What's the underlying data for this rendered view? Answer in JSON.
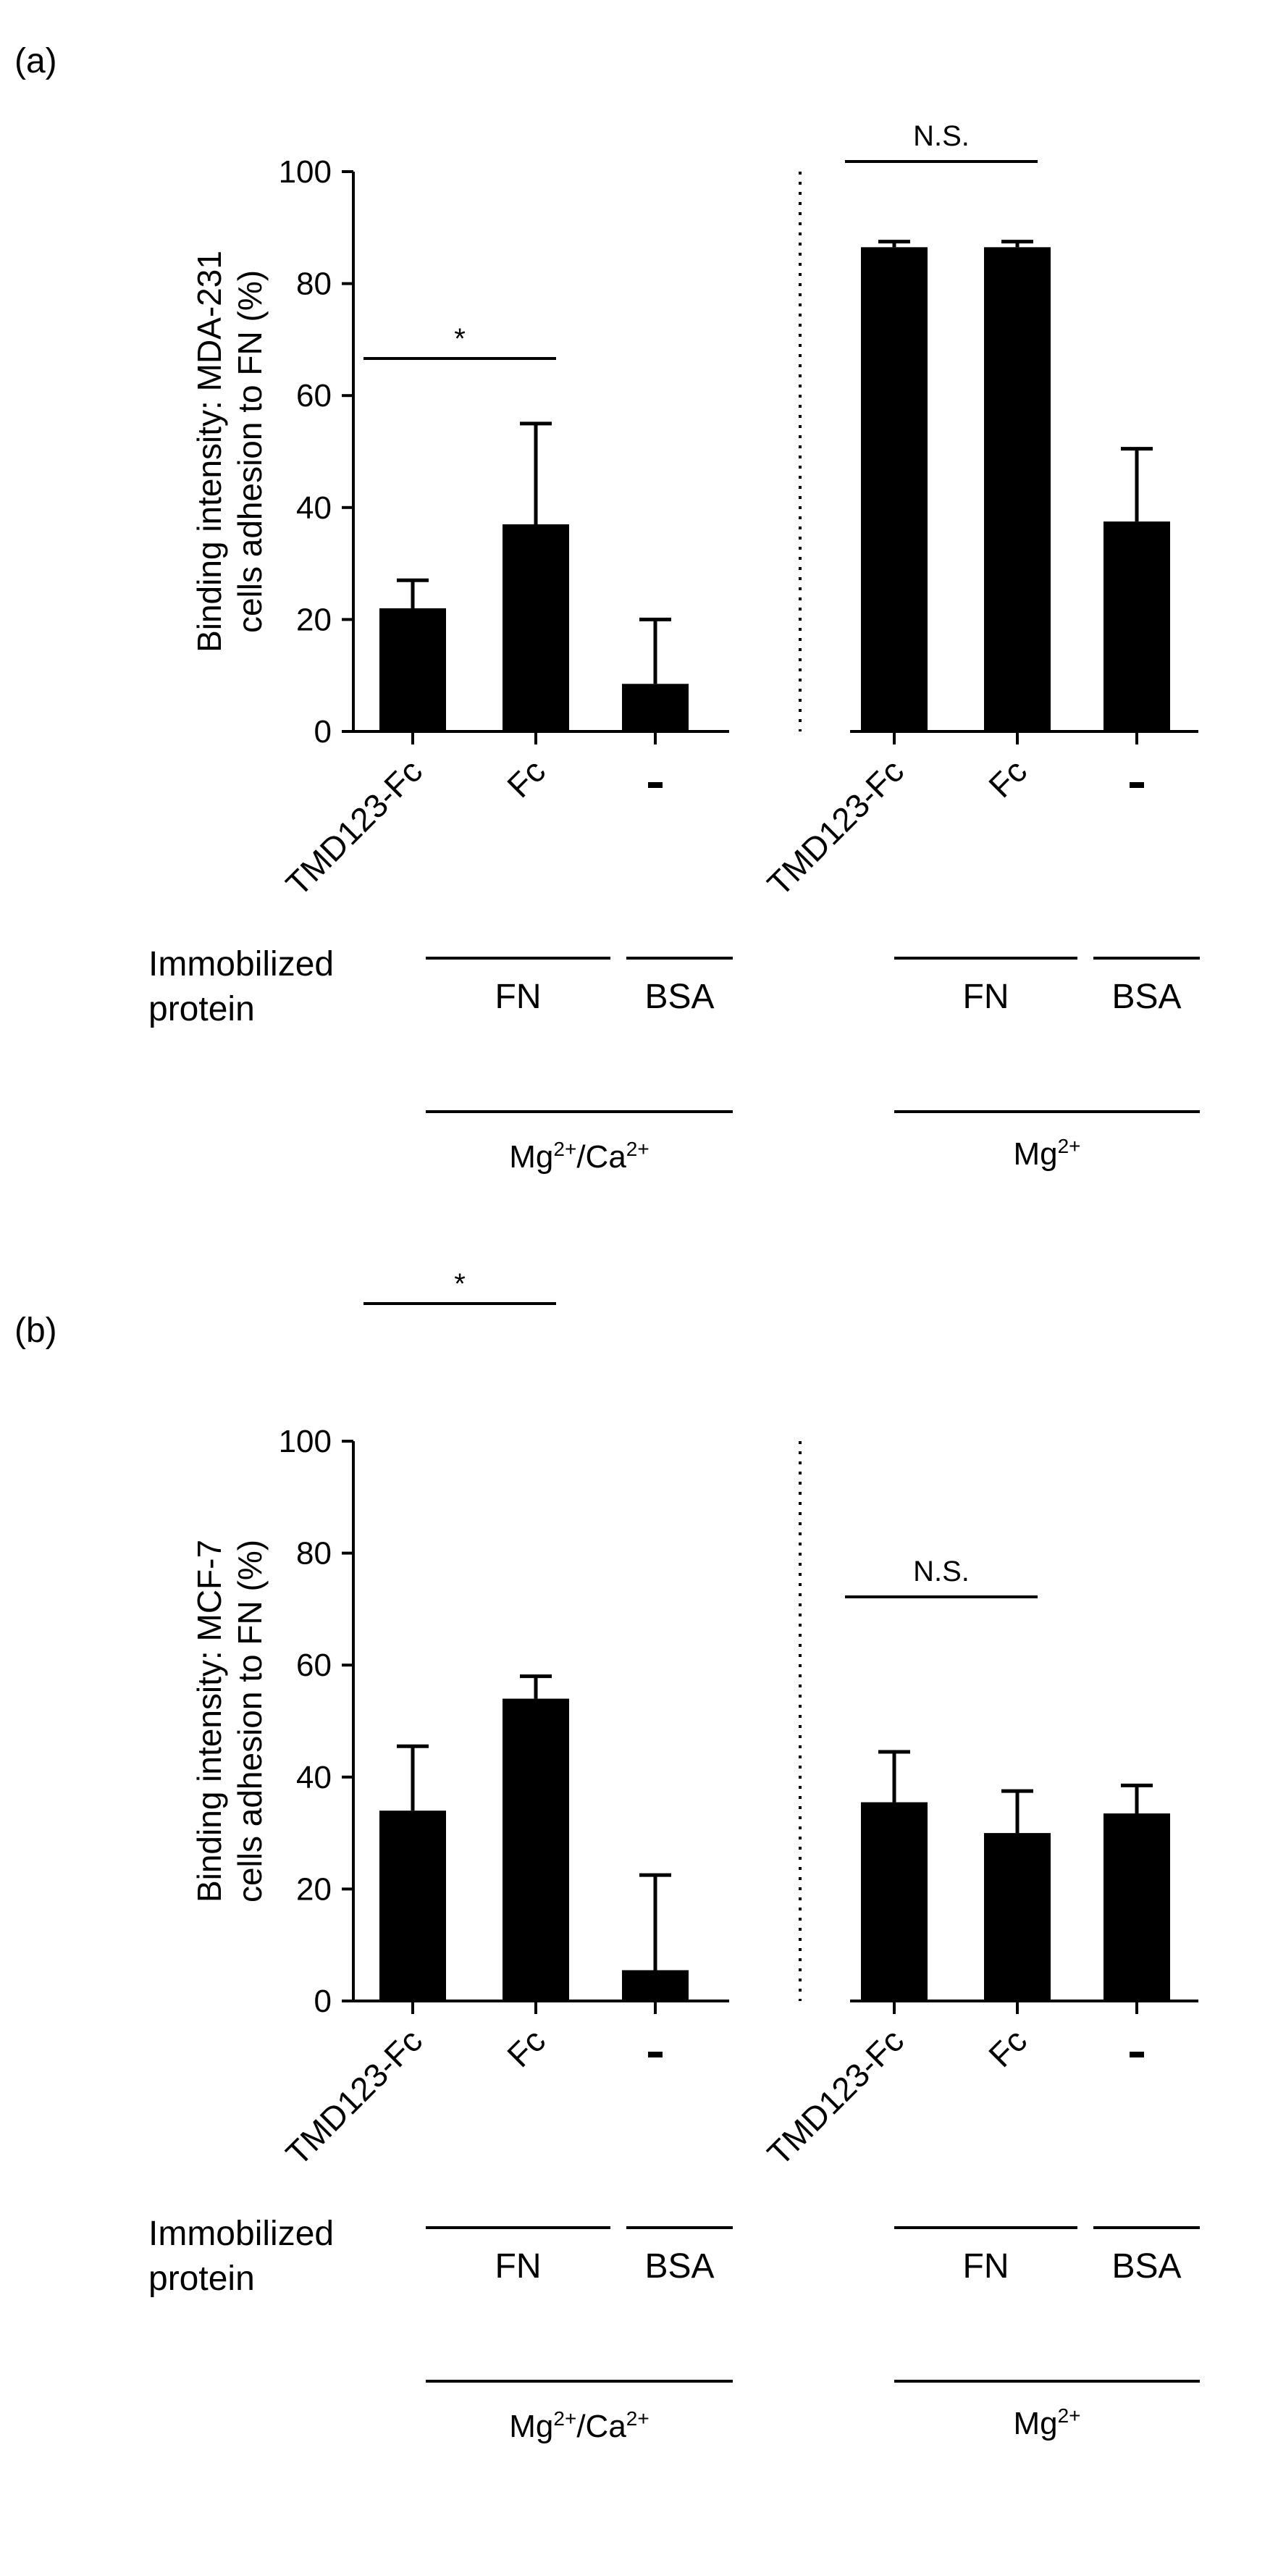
{
  "chart_data": [
    {
      "panel_label": "(a)",
      "type": "bar",
      "ylabel_line1": "Binding intensity: MDA-231",
      "ylabel_line2": "cells adhesion to FN (%)",
      "ylim": [
        0,
        100
      ],
      "yticks": [
        0,
        20,
        40,
        60,
        80,
        100
      ],
      "bar_color": "#000000",
      "categories": [
        "TMD123-Fc",
        "Fc",
        "-",
        "TMD123-Fc",
        "Fc",
        "-"
      ],
      "values": [
        22,
        37,
        8.5,
        86.5,
        86.5,
        37.5
      ],
      "error_upper": [
        27,
        55,
        20,
        87.5,
        87.5,
        50.5
      ],
      "significance": [
        {
          "text": "*",
          "from_bar": 0,
          "to_bar": 1
        },
        {
          "text": "N.S.",
          "from_bar": 3,
          "to_bar": 4
        }
      ],
      "row_label_line1": "Immobilized",
      "row_label_line2": "protein",
      "protein_labels": [
        "FN",
        "BSA",
        "FN",
        "BSA"
      ],
      "ion_condition_left": {
        "prefix": "Mg",
        "sup1": "2+",
        "middle": "/Ca",
        "sup2": "2+"
      },
      "ion_condition_right": {
        "prefix": "Mg",
        "sup1": "2+"
      }
    },
    {
      "panel_label": "(b)",
      "type": "bar",
      "ylabel_line1": "Binding intensity: MCF-7",
      "ylabel_line2": "cells adhesion to FN (%)",
      "ylim": [
        0,
        100
      ],
      "yticks": [
        0,
        20,
        40,
        60,
        80,
        100
      ],
      "bar_color": "#000000",
      "categories": [
        "TMD123-Fc",
        "Fc",
        "-",
        "TMD123-Fc",
        "Fc",
        "-"
      ],
      "values": [
        34,
        54,
        5.5,
        35.5,
        30,
        33.5
      ],
      "error_upper": [
        45.5,
        58,
        22.5,
        44.5,
        37.5,
        38.5
      ],
      "significance": [
        {
          "text": "*",
          "from_bar": 0,
          "to_bar": 1
        },
        {
          "text": "N.S.",
          "from_bar": 3,
          "to_bar": 4
        }
      ],
      "row_label_line1": "Immobilized",
      "row_label_line2": "protein",
      "protein_labels": [
        "FN",
        "BSA",
        "FN",
        "BSA"
      ],
      "ion_condition_left": {
        "prefix": "Mg",
        "sup1": "2+",
        "middle": "/Ca",
        "sup2": "2+"
      },
      "ion_condition_right": {
        "prefix": "Mg",
        "sup1": "2+"
      }
    }
  ]
}
